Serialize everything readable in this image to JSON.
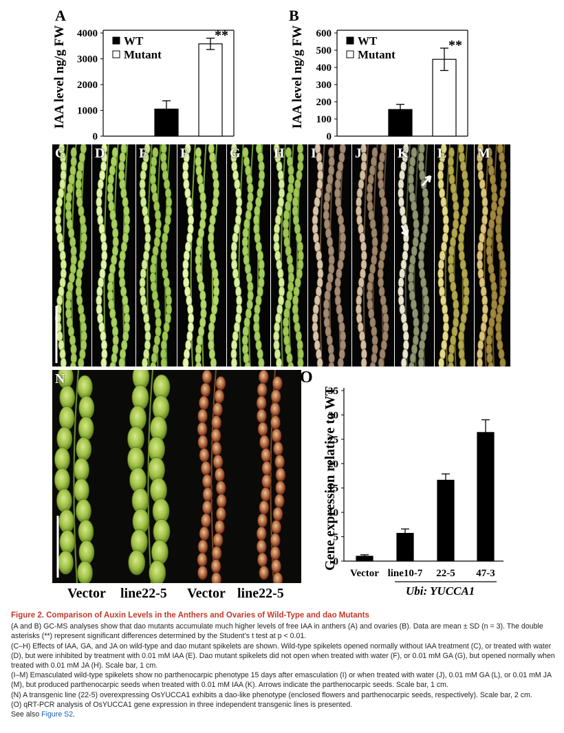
{
  "panelA": {
    "letter": "A",
    "ylabel": "IAA level ng/g FW",
    "legend": [
      {
        "label": "WT",
        "color": "#000000"
      },
      {
        "label": "Mutant",
        "color": "#ffffff"
      }
    ],
    "significance": "**"
  },
  "panelB": {
    "letter": "B",
    "ylabel": "IAA level ng/g FW",
    "legend": [
      {
        "label": "WT",
        "color": "#000000"
      },
      {
        "label": "Mutant",
        "color": "#ffffff"
      }
    ],
    "significance": "**"
  },
  "panelO": {
    "letter": "O",
    "ylabel": "Gene expression relative to WT",
    "group_label": "Ubi: YUCCA1"
  },
  "photo_panels": [
    "C",
    "D",
    "E",
    "F",
    "G",
    "H",
    "I",
    "J",
    "K",
    "L",
    "M",
    "N"
  ],
  "panelN_labels": [
    "Vector",
    "line22-5",
    "Vector",
    "line22-5"
  ],
  "chart_data": [
    {
      "type": "bar",
      "title": "",
      "ylabel": "IAA level ng/g FW",
      "categories": [
        "WT",
        "Mutant"
      ],
      "values": [
        1050,
        3580
      ],
      "errors": [
        320,
        220
      ],
      "ylim": [
        0,
        4000
      ],
      "yticks": [
        "0",
        "1000",
        "2000",
        "3000",
        "4000"
      ],
      "colors": [
        "#000000",
        "#ffffff"
      ],
      "legend": "top-left",
      "grid": false
    },
    {
      "type": "bar",
      "title": "",
      "ylabel": "IAA level ng/g FW",
      "categories": [
        "WT",
        "Mutant"
      ],
      "values": [
        155,
        447
      ],
      "errors": [
        30,
        65
      ],
      "ylim": [
        0,
        600
      ],
      "yticks": [
        "0",
        "100",
        "200",
        "300",
        "400",
        "500",
        "600"
      ],
      "colors": [
        "#000000",
        "#ffffff"
      ],
      "legend": "top-left",
      "grid": false
    },
    {
      "type": "bar",
      "title": "",
      "ylabel": "Gene expression relative to WT",
      "categories": [
        "Vector",
        "line10-7",
        "22-5",
        "47-3"
      ],
      "values": [
        1,
        5.7,
        16.6,
        26.4
      ],
      "errors": [
        0.3,
        0.9,
        1.3,
        2.6
      ],
      "ylim": [
        0,
        35
      ],
      "yticks": [
        "0",
        "5",
        "10",
        "15",
        "20",
        "25",
        "30",
        "35"
      ],
      "colors": [
        "#000000"
      ],
      "grid": false
    }
  ],
  "caption": {
    "title": "Figure 2.  Comparison of Auxin Levels in the Anthers and Ovaries of Wild-Type and dao Mutants",
    "p1": "(A and B) GC-MS analyses show that dao mutants accumulate much higher levels of free IAA in anthers (A) and ovaries (B). Data are mean ± SD (n = 3). The double asterisks (**) represent significant differences determined by the Student’s t test at p < 0.01.",
    "p2": "(C–H) Effects of IAA, GA, and JA on wild-type and dao mutant spikelets are shown. Wild-type spikelets opened normally without IAA treatment (C), or treated with water (D), but were inhibited by treatment with 0.01 mM IAA (E). Dao mutant spikelets did not open when treated with water (F), or 0.01 mM GA (G), but opened normally when treated with 0.01 mM JA (H). Scale bar, 1 cm.",
    "p3": "(I–M) Emasculated wild-type spikelets show no parthenocarpic phenotype 15 days after emasculation (I) or when treated with water (J), 0.01 mM GA (L), or 0.01 mM JA (M), but produced parthenocarpic seeds when treated with 0.01 mM IAA (K). Arrows indicate the parthenocarpic seeds. Scale bar, 1 cm.",
    "p4": "(N) A transgenic line (22-5) overexpressing OsYUCCA1 exhibits a dao-like phenotype (enclosed flowers and parthenocarpic seeds, respectively). Scale bar, 2 cm.",
    "p5": "(O) qRT-PCR analysis of OsYUCCA1 gene expression in three independent transgenic lines is presented.",
    "see_also_prefix": "See also",
    "see_also_link": "Figure S2",
    "see_also_suffix": "."
  }
}
